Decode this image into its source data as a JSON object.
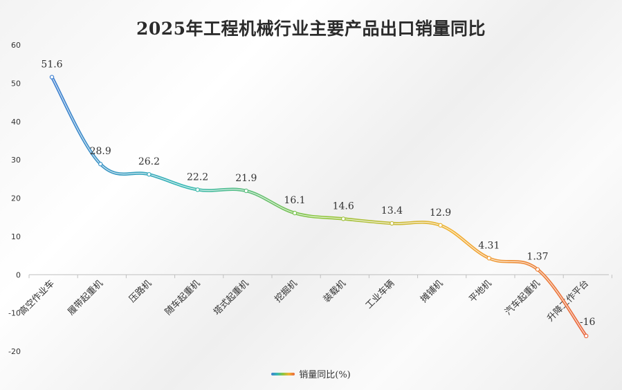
{
  "chart_data": {
    "type": "line",
    "title": "2025年工程机械行业主要产品出口销量同比",
    "categories": [
      "高空作业车",
      "履带起重机",
      "压路机",
      "随车起重机",
      "塔式起重机",
      "挖掘机",
      "装载机",
      "工业车辆",
      "摊铺机",
      "平地机",
      "汽车起重机",
      "升降工作平台"
    ],
    "series": [
      {
        "name": "销量同比(%)",
        "values": [
          51.6,
          28.9,
          26.2,
          22.2,
          21.9,
          16.1,
          14.6,
          13.4,
          12.9,
          4.31,
          1.37,
          -16
        ],
        "labels": [
          "51.6",
          "28.9",
          "26.2",
          "22.2",
          "21.9",
          "16.1",
          "14.6",
          "13.4",
          "12.9",
          "4.31",
          "1.37",
          "-16"
        ]
      }
    ],
    "yticks": [
      "60",
      "50",
      "40",
      "30",
      "20",
      "10",
      "0",
      "-10",
      "-20"
    ],
    "ylim": [
      -20,
      60
    ],
    "xlabel": "",
    "ylabel": "",
    "grid": false,
    "legend": "bottom-center",
    "colors": {
      "gradient": [
        "#3f7fd0",
        "#35b8b4",
        "#8cc63f",
        "#f2b233",
        "#e8643c"
      ],
      "axis": "#bfbfbf",
      "text": "#333333",
      "title": "#2b2b2b"
    }
  }
}
